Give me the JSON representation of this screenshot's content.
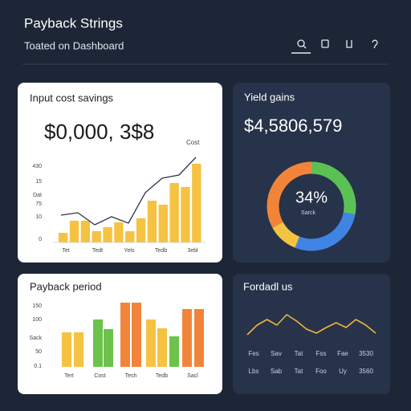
{
  "header": {
    "title": "Payback Strings",
    "subtitle": "Toated on Dashboard"
  },
  "cost_card": {
    "title": "Input cost savings",
    "amount": "$0,000, 3$8",
    "legend": "Cost",
    "y_labels": [
      "430",
      "15",
      "Dat",
      "75",
      "10",
      "0"
    ],
    "x_labels": [
      "Tet",
      "Tedt",
      "Yels",
      "Tedb",
      "3ebl"
    ],
    "ylim": [
      0,
      110
    ],
    "bar_color": "#f5c242",
    "bars": [
      12,
      27,
      27,
      14,
      19,
      25,
      14,
      30,
      52,
      47,
      74,
      69,
      98
    ],
    "line_color": "#2a3550",
    "line": [
      34,
      37,
      22,
      32,
      24,
      62,
      80,
      84,
      106
    ]
  },
  "yield_card": {
    "title": "Yield gains",
    "amount": "$4,5806,579",
    "center": "34%",
    "caption": "Sarck",
    "segments": [
      {
        "value": 28,
        "color": "#5cc155"
      },
      {
        "value": 28,
        "color": "#3f84e5"
      },
      {
        "value": 11,
        "color": "#f5c242"
      },
      {
        "value": 33,
        "color": "#f2843a"
      }
    ]
  },
  "payback_card": {
    "title": "Payback period",
    "y_labels": [
      "150",
      "100",
      "Sack",
      "50",
      "0.1"
    ],
    "x_labels": [
      "Tert",
      "Cost",
      "Tesh",
      "Tedb",
      "Sacl"
    ],
    "ylim": [
      0,
      90
    ],
    "bars": [
      43,
      43,
      59,
      47,
      80,
      80,
      59,
      48,
      38,
      72,
      72
    ],
    "colors": [
      "#f5c242",
      "#f5c242",
      "#6cc24a",
      "#6cc24a",
      "#f2843a",
      "#f2843a",
      "#f5c242",
      "#f5c242",
      "#6cc24a",
      "#f2843a",
      "#f2843a"
    ]
  },
  "forecast_card": {
    "title": "Fordadl us",
    "line_color": "#f0b43a",
    "ylim": [
      0,
      30
    ],
    "line": [
      3,
      15,
      22,
      15,
      28,
      20,
      10,
      5,
      12,
      18,
      12,
      22,
      15,
      5
    ],
    "rows": [
      [
        "Fes",
        "Sav",
        "Tat",
        "Fss",
        "Fae",
        "3530"
      ],
      [
        "Lbs",
        "Sab",
        "Tat",
        "Foo",
        "Uy",
        "3560"
      ]
    ]
  }
}
